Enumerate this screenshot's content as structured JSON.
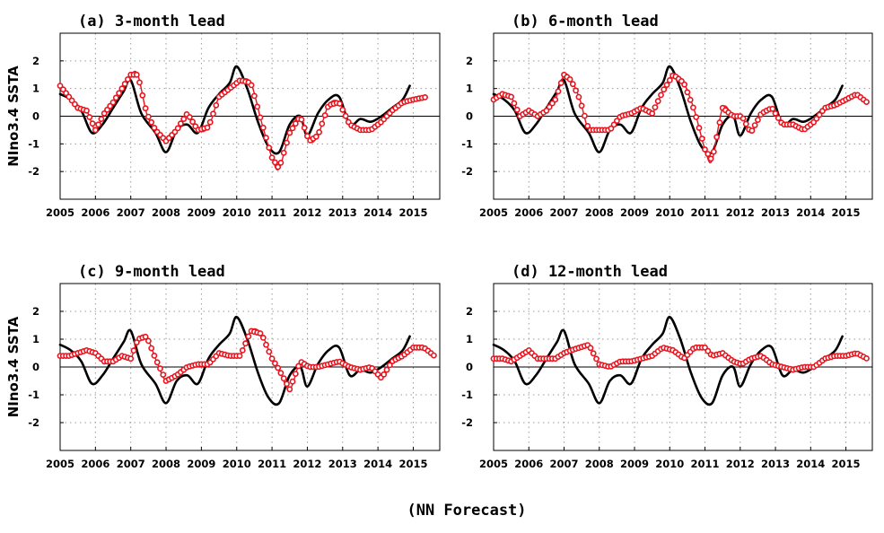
{
  "figure": {
    "footer": "(NN Forecast)"
  },
  "colors": {
    "observed": "#000000",
    "forecast": "#e8141e",
    "grid": "#9a9a9a"
  },
  "chart_data": [
    {
      "type": "line",
      "title": "(a) 3-month lead",
      "ylabel": "NIno3.4 SSTA",
      "xlim": [
        2005,
        2015.75
      ],
      "ylim": [
        -3,
        3
      ],
      "xticks": [
        2005,
        2006,
        2007,
        2008,
        2009,
        2010,
        2011,
        2012,
        2013,
        2014,
        2015
      ],
      "yticks": [
        -2,
        -1,
        0,
        1,
        2
      ],
      "grid": true,
      "series": [
        {
          "style": "solid-line",
          "x": [
            2005.0,
            2005.3,
            2005.6,
            2005.9,
            2006.2,
            2006.5,
            2006.8,
            2007.0,
            2007.3,
            2007.7,
            2008.0,
            2008.3,
            2008.6,
            2008.9,
            2009.2,
            2009.5,
            2009.8,
            2010.0,
            2010.3,
            2010.6,
            2010.9,
            2011.2,
            2011.5,
            2011.8,
            2012.0,
            2012.3,
            2012.6,
            2012.9,
            2013.2,
            2013.5,
            2013.8,
            2014.1,
            2014.4,
            2014.7,
            2014.9
          ],
          "y": [
            0.8,
            0.6,
            0.2,
            -0.6,
            -0.3,
            0.3,
            0.9,
            1.3,
            0.1,
            -0.6,
            -1.3,
            -0.5,
            -0.3,
            -0.6,
            0.3,
            0.8,
            1.2,
            1.8,
            1.0,
            -0.2,
            -1.1,
            -1.3,
            -0.3,
            0.0,
            -0.7,
            0.1,
            0.6,
            0.7,
            -0.3,
            -0.1,
            -0.2,
            0.0,
            0.3,
            0.6,
            1.1
          ]
        },
        {
          "style": "circle-markers",
          "x": [
            2005.0,
            2005.25,
            2005.5,
            2005.75,
            2006.0,
            2006.25,
            2006.5,
            2006.75,
            2007.0,
            2007.2,
            2007.45,
            2007.7,
            2008.0,
            2008.3,
            2008.6,
            2008.9,
            2009.2,
            2009.5,
            2009.8,
            2010.1,
            2010.4,
            2010.7,
            2011.0,
            2011.2,
            2011.5,
            2011.8,
            2012.05,
            2012.3,
            2012.6,
            2012.9,
            2013.2,
            2013.5,
            2013.8,
            2014.1,
            2014.4,
            2014.7,
            2015.0,
            2015.4
          ],
          "y": [
            1.1,
            0.7,
            0.3,
            0.2,
            -0.5,
            0.1,
            0.5,
            1.0,
            1.5,
            1.5,
            0.1,
            -0.5,
            -0.9,
            -0.5,
            0.1,
            -0.5,
            -0.4,
            0.7,
            1.0,
            1.3,
            1.2,
            -0.2,
            -1.5,
            -1.9,
            -0.6,
            0.0,
            -0.9,
            -0.7,
            0.4,
            0.5,
            -0.3,
            -0.5,
            -0.5,
            -0.2,
            0.2,
            0.5,
            0.6,
            0.7
          ]
        }
      ]
    },
    {
      "type": "line",
      "title": "(b) 6-month lead",
      "ylabel": "",
      "xlim": [
        2005,
        2015.75
      ],
      "ylim": [
        -3,
        3
      ],
      "xticks": [
        2005,
        2006,
        2007,
        2008,
        2009,
        2010,
        2011,
        2012,
        2013,
        2014,
        2015
      ],
      "yticks": [
        -2,
        -1,
        0,
        1,
        2
      ],
      "grid": true,
      "series": [
        {
          "style": "solid-line",
          "x": [
            2005.0,
            2005.3,
            2005.6,
            2005.9,
            2006.2,
            2006.5,
            2006.8,
            2007.0,
            2007.3,
            2007.7,
            2008.0,
            2008.3,
            2008.6,
            2008.9,
            2009.2,
            2009.5,
            2009.8,
            2010.0,
            2010.3,
            2010.6,
            2010.9,
            2011.2,
            2011.5,
            2011.8,
            2012.0,
            2012.3,
            2012.6,
            2012.9,
            2013.2,
            2013.5,
            2013.8,
            2014.1,
            2014.4,
            2014.7,
            2014.9
          ],
          "y": [
            0.8,
            0.6,
            0.2,
            -0.6,
            -0.3,
            0.3,
            0.9,
            1.3,
            0.1,
            -0.6,
            -1.3,
            -0.5,
            -0.3,
            -0.6,
            0.3,
            0.8,
            1.2,
            1.8,
            1.0,
            -0.2,
            -1.1,
            -1.3,
            -0.3,
            0.0,
            -0.7,
            0.1,
            0.6,
            0.7,
            -0.3,
            -0.1,
            -0.2,
            0.0,
            0.3,
            0.6,
            1.1
          ]
        },
        {
          "style": "circle-markers",
          "x": [
            2005.0,
            2005.25,
            2005.5,
            2005.75,
            2006.0,
            2006.25,
            2006.5,
            2006.75,
            2007.0,
            2007.2,
            2007.45,
            2007.7,
            2008.0,
            2008.3,
            2008.6,
            2008.9,
            2009.2,
            2009.5,
            2009.8,
            2010.1,
            2010.4,
            2010.7,
            2011.0,
            2011.2,
            2011.5,
            2011.8,
            2012.05,
            2012.3,
            2012.6,
            2012.9,
            2013.2,
            2013.5,
            2013.8,
            2014.1,
            2014.4,
            2014.7,
            2015.0,
            2015.3,
            2015.6
          ],
          "y": [
            0.6,
            0.8,
            0.7,
            0.0,
            0.2,
            0.0,
            0.2,
            0.6,
            1.5,
            1.3,
            0.6,
            -0.5,
            -0.5,
            -0.5,
            0.0,
            0.1,
            0.3,
            0.1,
            0.9,
            1.5,
            1.2,
            0.2,
            -1.2,
            -1.6,
            0.3,
            0.0,
            0.0,
            -0.6,
            0.1,
            0.3,
            -0.3,
            -0.3,
            -0.5,
            -0.2,
            0.3,
            0.4,
            0.6,
            0.8,
            0.5
          ]
        }
      ]
    },
    {
      "type": "line",
      "title": "(c) 9-month lead",
      "ylabel": "NIno3.4 SSTA",
      "xlim": [
        2005,
        2015.75
      ],
      "ylim": [
        -3,
        3
      ],
      "xticks": [
        2005,
        2006,
        2007,
        2008,
        2009,
        2010,
        2011,
        2012,
        2013,
        2014,
        2015
      ],
      "yticks": [
        -2,
        -1,
        0,
        1,
        2
      ],
      "grid": true,
      "series": [
        {
          "style": "solid-line",
          "x": [
            2005.0,
            2005.3,
            2005.6,
            2005.9,
            2006.2,
            2006.5,
            2006.8,
            2007.0,
            2007.3,
            2007.7,
            2008.0,
            2008.3,
            2008.6,
            2008.9,
            2009.2,
            2009.5,
            2009.8,
            2010.0,
            2010.3,
            2010.6,
            2010.9,
            2011.2,
            2011.5,
            2011.8,
            2012.0,
            2012.3,
            2012.6,
            2012.9,
            2013.2,
            2013.5,
            2013.8,
            2014.1,
            2014.4,
            2014.7,
            2014.9
          ],
          "y": [
            0.8,
            0.6,
            0.2,
            -0.6,
            -0.3,
            0.3,
            0.9,
            1.3,
            0.1,
            -0.6,
            -1.3,
            -0.5,
            -0.3,
            -0.6,
            0.3,
            0.8,
            1.2,
            1.8,
            1.0,
            -0.2,
            -1.1,
            -1.3,
            -0.3,
            0.0,
            -0.7,
            0.1,
            0.6,
            0.7,
            -0.3,
            -0.1,
            -0.2,
            0.0,
            0.3,
            0.6,
            1.1
          ]
        },
        {
          "style": "circle-markers",
          "x": [
            2005.0,
            2005.25,
            2005.5,
            2005.75,
            2006.0,
            2006.25,
            2006.5,
            2006.75,
            2007.0,
            2007.2,
            2007.45,
            2007.7,
            2008.0,
            2008.3,
            2008.6,
            2008.9,
            2009.2,
            2009.5,
            2009.8,
            2010.1,
            2010.4,
            2010.7,
            2011.0,
            2011.2,
            2011.5,
            2011.8,
            2012.05,
            2012.3,
            2012.6,
            2012.9,
            2013.2,
            2013.5,
            2013.8,
            2014.1,
            2014.4,
            2014.7,
            2015.0,
            2015.3,
            2015.6
          ],
          "y": [
            0.4,
            0.4,
            0.5,
            0.6,
            0.5,
            0.2,
            0.2,
            0.4,
            0.3,
            1.0,
            1.1,
            0.3,
            -0.5,
            -0.3,
            0.0,
            0.1,
            0.1,
            0.5,
            0.4,
            0.4,
            1.3,
            1.2,
            0.3,
            -0.1,
            -0.8,
            0.2,
            0.0,
            0.0,
            0.1,
            0.2,
            0.0,
            -0.1,
            0.0,
            -0.4,
            0.2,
            0.4,
            0.7,
            0.7,
            0.4
          ]
        }
      ]
    },
    {
      "type": "line",
      "title": "(d) 12-month lead",
      "ylabel": "",
      "xlim": [
        2005,
        2015.75
      ],
      "ylim": [
        -3,
        3
      ],
      "xticks": [
        2005,
        2006,
        2007,
        2008,
        2009,
        2010,
        2011,
        2012,
        2013,
        2014,
        2015
      ],
      "yticks": [
        -2,
        -1,
        0,
        1,
        2
      ],
      "grid": true,
      "series": [
        {
          "style": "solid-line",
          "x": [
            2005.0,
            2005.3,
            2005.6,
            2005.9,
            2006.2,
            2006.5,
            2006.8,
            2007.0,
            2007.3,
            2007.7,
            2008.0,
            2008.3,
            2008.6,
            2008.9,
            2009.2,
            2009.5,
            2009.8,
            2010.0,
            2010.3,
            2010.6,
            2010.9,
            2011.2,
            2011.5,
            2011.8,
            2012.0,
            2012.3,
            2012.6,
            2012.9,
            2013.2,
            2013.5,
            2013.8,
            2014.1,
            2014.4,
            2014.7,
            2014.9
          ],
          "y": [
            0.8,
            0.6,
            0.2,
            -0.6,
            -0.3,
            0.3,
            0.9,
            1.3,
            0.1,
            -0.6,
            -1.3,
            -0.5,
            -0.3,
            -0.6,
            0.3,
            0.8,
            1.2,
            1.8,
            1.0,
            -0.2,
            -1.1,
            -1.3,
            -0.3,
            0.0,
            -0.7,
            0.1,
            0.6,
            0.7,
            -0.3,
            -0.1,
            -0.2,
            0.0,
            0.3,
            0.6,
            1.1
          ]
        },
        {
          "style": "circle-markers",
          "x": [
            2005.0,
            2005.25,
            2005.5,
            2005.75,
            2006.0,
            2006.25,
            2006.5,
            2006.75,
            2007.0,
            2007.2,
            2007.45,
            2007.7,
            2008.0,
            2008.3,
            2008.6,
            2008.9,
            2009.2,
            2009.5,
            2009.8,
            2010.1,
            2010.4,
            2010.7,
            2011.0,
            2011.2,
            2011.5,
            2011.8,
            2012.05,
            2012.3,
            2012.6,
            2012.9,
            2013.2,
            2013.5,
            2013.8,
            2014.1,
            2014.4,
            2014.7,
            2015.0,
            2015.3,
            2015.6
          ],
          "y": [
            0.3,
            0.3,
            0.2,
            0.4,
            0.6,
            0.3,
            0.3,
            0.3,
            0.5,
            0.6,
            0.7,
            0.8,
            0.1,
            0.0,
            0.2,
            0.2,
            0.3,
            0.4,
            0.7,
            0.6,
            0.3,
            0.7,
            0.7,
            0.4,
            0.5,
            0.2,
            0.1,
            0.3,
            0.4,
            0.1,
            0.0,
            -0.1,
            0.0,
            0.0,
            0.3,
            0.4,
            0.4,
            0.5,
            0.3
          ]
        }
      ]
    }
  ]
}
